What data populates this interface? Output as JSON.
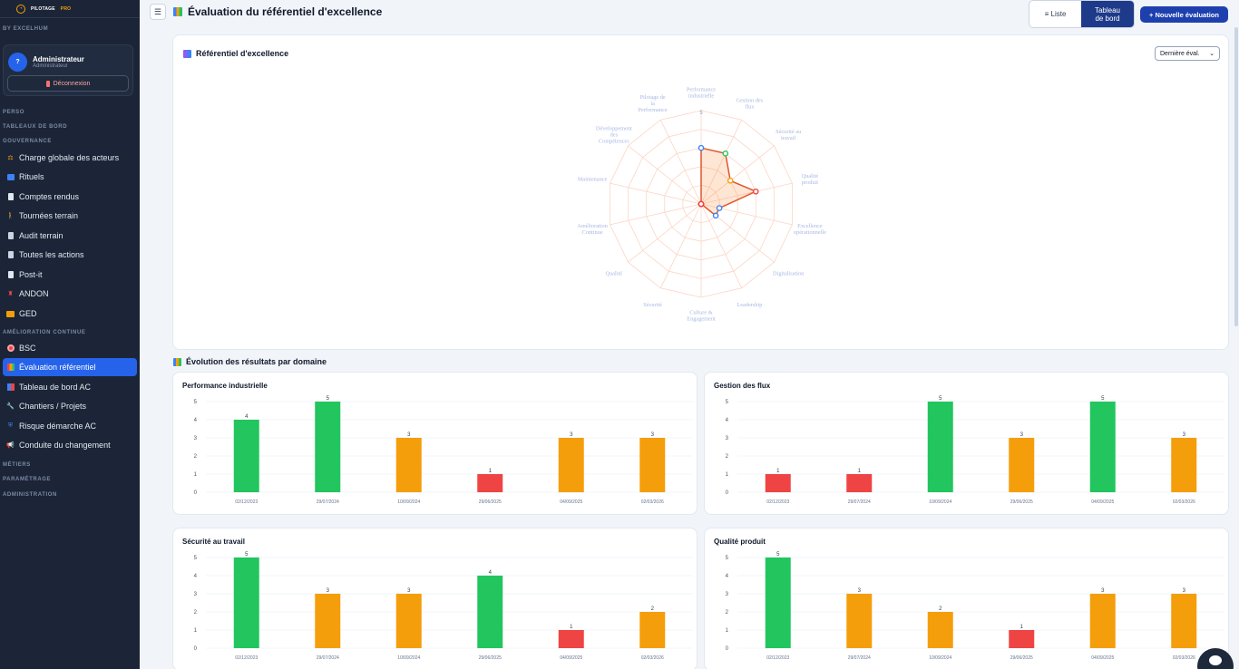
{
  "sidebar": {
    "brand": "PILOTAGE",
    "brand_suffix": "PRO",
    "byline": "BY EXCELHUM",
    "user": {
      "avatar": "?",
      "name": "Administrateur",
      "role": "Administrateur",
      "logout": "Déconnexion"
    },
    "sections": {
      "perso": "PERSO",
      "tableaux": "TABLEAUX DE BORD",
      "gouvernance": "GOUVERNANCE",
      "amelioration": "AMÉLIORATION CONTINUE",
      "metiers": "MÉTIERS",
      "parametrage": "PARAMÉTRAGE",
      "administration": "ADMINISTRATION"
    },
    "items": [
      {
        "label": "Charge globale des acteurs",
        "icon": "scale-icon"
      },
      {
        "label": "Rituels",
        "icon": "calendar-icon"
      },
      {
        "label": "Comptes rendus",
        "icon": "document-icon"
      },
      {
        "label": "Tournées terrain",
        "icon": "walking-icon"
      },
      {
        "label": "Audit terrain",
        "icon": "clipboard-icon"
      },
      {
        "label": "Toutes les actions",
        "icon": "clipboard-icon"
      },
      {
        "label": "Post-it",
        "icon": "note-icon"
      },
      {
        "label": "ANDON",
        "icon": "andon-icon"
      },
      {
        "label": "GED",
        "icon": "folder-icon"
      },
      {
        "label": "BSC",
        "icon": "target-icon"
      },
      {
        "label": "Évaluation référentiel",
        "icon": "chart-icon"
      },
      {
        "label": "Tableau de bord AC",
        "icon": "chart-icon"
      },
      {
        "label": "Chantiers / Projets",
        "icon": "tools-icon"
      },
      {
        "label": "Risque démarche AC",
        "icon": "shield-icon"
      },
      {
        "label": "Conduite du changement",
        "icon": "megaphone-icon"
      }
    ]
  },
  "header": {
    "menu_icon": "☰",
    "title": "Évaluation du référentiel d'excellence",
    "view_list": "≡ Liste",
    "view_dashboard_line1": "Tableau",
    "view_dashboard_line2": "de bord",
    "new_button": "+ Nouvelle évaluation"
  },
  "radar": {
    "title": "Référentiel d'excellence",
    "select_value": "Dernière éval.",
    "chart_data": {
      "type": "radar",
      "axes": [
        "Performance industrielle",
        "Gestion des flux",
        "Sécurité au travail",
        "Qualité produit",
        "Excellence opérationnelle",
        "Digitalisation",
        "Leadership",
        "Culture & Engagement",
        "Sécurité",
        "Qualité",
        "Amélioration Continue",
        "Maintenance",
        "Développement des Compétences",
        "Pilotage de la Performance"
      ],
      "rmax": 5,
      "values": [
        3,
        3,
        2,
        3,
        1,
        1,
        0,
        0,
        0,
        0,
        0,
        0,
        0,
        0
      ],
      "point_colors": [
        "#3b82f6",
        "#22c55e",
        "#f59e0b",
        "#ef4444",
        "#3b82f6",
        "#3b82f6",
        "#ef4444",
        "#ef4444",
        "#ef4444",
        "#ef4444",
        "#ef4444",
        "#ef4444",
        "#ef4444",
        "#ef4444"
      ],
      "tick_label": "5"
    }
  },
  "evolution": {
    "title": "Évolution des résultats par domaine",
    "colors": {
      "green": "#22c55e",
      "orange": "#f59e0b",
      "red": "#ef4444"
    },
    "charts": [
      {
        "title": "Performance industrielle",
        "chart_data": {
          "type": "bar",
          "categories": [
            "02/12/2023",
            "29/07/2024",
            "10/09/2024",
            "29/06/2025",
            "04/09/2025",
            "02/03/2026"
          ],
          "values": [
            4,
            5,
            3,
            1,
            3,
            3
          ],
          "ylim": [
            0,
            5
          ]
        }
      },
      {
        "title": "Gestion des flux",
        "chart_data": {
          "type": "bar",
          "categories": [
            "02/12/2023",
            "29/07/2024",
            "10/09/2024",
            "29/06/2025",
            "04/09/2025",
            "02/03/2026"
          ],
          "values": [
            1,
            1,
            5,
            3,
            5,
            3
          ],
          "ylim": [
            0,
            5
          ]
        }
      },
      {
        "title": "Sécurité au travail",
        "chart_data": {
          "type": "bar",
          "categories": [
            "02/12/2023",
            "29/07/2024",
            "10/09/2024",
            "29/06/2025",
            "04/09/2025",
            "02/03/2026"
          ],
          "values": [
            5,
            3,
            3,
            4,
            1,
            2
          ],
          "ylim": [
            0,
            5
          ]
        }
      },
      {
        "title": "Qualité produit",
        "chart_data": {
          "type": "bar",
          "categories": [
            "02/12/2023",
            "29/07/2024",
            "10/09/2024",
            "29/06/2025",
            "04/09/2025",
            "02/03/2026"
          ],
          "values": [
            5,
            3,
            2,
            1,
            3,
            3
          ],
          "ylim": [
            0,
            5
          ]
        }
      }
    ]
  }
}
